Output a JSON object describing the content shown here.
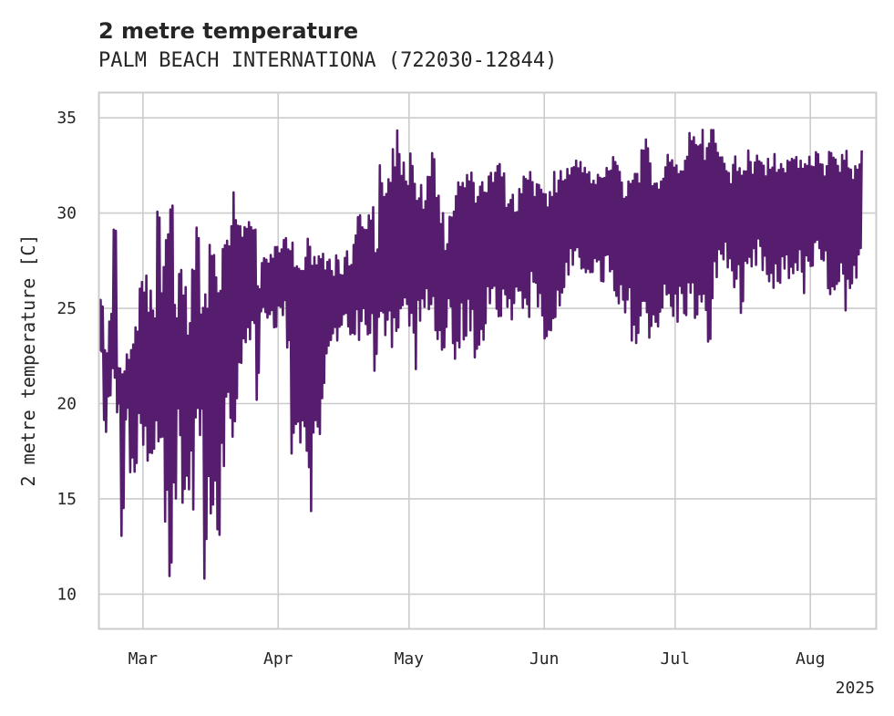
{
  "chart_data": {
    "type": "line",
    "title": "2 metre temperature",
    "subtitle": "PALM BEACH INTERNATIONA (722030-12844)",
    "xlabel": "",
    "ylabel": "2 metre temperature [C]",
    "x_range": [
      "2025-02-19",
      "2025-08-16"
    ],
    "ylim": [
      8.2,
      36.3
    ],
    "y_ticks": [
      10,
      15,
      20,
      25,
      30,
      35
    ],
    "x_ticks": [
      {
        "date": "2025-03-01",
        "label": "Mar"
      },
      {
        "date": "2025-04-01",
        "label": "Apr"
      },
      {
        "date": "2025-05-01",
        "label": "May"
      },
      {
        "date": "2025-06-01",
        "label": "Jun"
      },
      {
        "date": "2025-07-01",
        "label": "Jul"
      },
      {
        "date": "2025-08-01",
        "label": "Aug"
      }
    ],
    "x_offset_label": "2025",
    "grid": true,
    "line_color": "#561c6e",
    "series": [
      {
        "name": "",
        "x": [
          "2025-02-19",
          "2025-02-20",
          "2025-02-21",
          "2025-02-22",
          "2025-02-23",
          "2025-02-24",
          "2025-02-25",
          "2025-02-26",
          "2025-02-27",
          "2025-02-28",
          "2025-03-01",
          "2025-03-02",
          "2025-03-03",
          "2025-03-04",
          "2025-03-05",
          "2025-03-06",
          "2025-03-07",
          "2025-03-08",
          "2025-03-09",
          "2025-03-10",
          "2025-03-11",
          "2025-03-12",
          "2025-03-13",
          "2025-03-14",
          "2025-03-15",
          "2025-03-16",
          "2025-03-17",
          "2025-03-18",
          "2025-03-19",
          "2025-03-20",
          "2025-03-21",
          "2025-03-22",
          "2025-03-23",
          "2025-03-24",
          "2025-03-25",
          "2025-03-26",
          "2025-03-27",
          "2025-03-28",
          "2025-03-29",
          "2025-03-30",
          "2025-03-31",
          "2025-04-01",
          "2025-04-02",
          "2025-04-03",
          "2025-04-04",
          "2025-04-05",
          "2025-04-06",
          "2025-04-07",
          "2025-04-08",
          "2025-04-09",
          "2025-04-10",
          "2025-04-11",
          "2025-04-12",
          "2025-04-13",
          "2025-04-14",
          "2025-04-15",
          "2025-04-16",
          "2025-04-17",
          "2025-04-18",
          "2025-04-19",
          "2025-04-20",
          "2025-04-21",
          "2025-04-22",
          "2025-04-23",
          "2025-04-24",
          "2025-04-25",
          "2025-04-26",
          "2025-04-27",
          "2025-04-28",
          "2025-04-29",
          "2025-04-30",
          "2025-05-01",
          "2025-05-02",
          "2025-05-03",
          "2025-05-04",
          "2025-05-05",
          "2025-05-06",
          "2025-05-07",
          "2025-05-08",
          "2025-05-09",
          "2025-05-10",
          "2025-05-11",
          "2025-05-12",
          "2025-05-13",
          "2025-05-14",
          "2025-05-15",
          "2025-05-16",
          "2025-05-17",
          "2025-05-18",
          "2025-05-19",
          "2025-05-20",
          "2025-05-21",
          "2025-05-22",
          "2025-05-23",
          "2025-05-24",
          "2025-05-25",
          "2025-05-26",
          "2025-05-27",
          "2025-05-28",
          "2025-05-29",
          "2025-05-30",
          "2025-05-31",
          "2025-06-01",
          "2025-06-02",
          "2025-06-03",
          "2025-06-04",
          "2025-06-05",
          "2025-06-06",
          "2025-06-07",
          "2025-06-08",
          "2025-06-09",
          "2025-06-10",
          "2025-06-11",
          "2025-06-12",
          "2025-06-13",
          "2025-06-14",
          "2025-06-15",
          "2025-06-16",
          "2025-06-17",
          "2025-06-18",
          "2025-06-19",
          "2025-06-20",
          "2025-06-21",
          "2025-06-22",
          "2025-06-23",
          "2025-06-24",
          "2025-06-25",
          "2025-06-26",
          "2025-06-27",
          "2025-06-28",
          "2025-06-29",
          "2025-06-30",
          "2025-07-01",
          "2025-07-02",
          "2025-07-03",
          "2025-07-04",
          "2025-07-05",
          "2025-07-06",
          "2025-07-07",
          "2025-07-08",
          "2025-07-09",
          "2025-07-10",
          "2025-07-11",
          "2025-07-12",
          "2025-07-13",
          "2025-07-14",
          "2025-07-15",
          "2025-07-16",
          "2025-07-17",
          "2025-07-18",
          "2025-07-19",
          "2025-07-20",
          "2025-07-21",
          "2025-07-22",
          "2025-07-23",
          "2025-07-24",
          "2025-07-25",
          "2025-07-26",
          "2025-07-27",
          "2025-07-28",
          "2025-07-29",
          "2025-07-30",
          "2025-07-31",
          "2025-08-01",
          "2025-08-02",
          "2025-08-03",
          "2025-08-04",
          "2025-08-05",
          "2025-08-06",
          "2025-08-07",
          "2025-08-08",
          "2025-08-09",
          "2025-08-10",
          "2025-08-11",
          "2025-08-12",
          "2025-08-13",
          "2025-08-14",
          "2025-08-15",
          "2025-08-16"
        ],
        "min": [
          22.2,
          18.3,
          19.4,
          20.0,
          19.4,
          12.8,
          18.9,
          15.6,
          16.1,
          17.2,
          16.7,
          15.6,
          16.1,
          16.7,
          17.2,
          12.8,
          9.4,
          13.3,
          18.3,
          13.3,
          15.0,
          14.4,
          17.2,
          17.8,
          10.0,
          13.9,
          14.4,
          12.2,
          16.7,
          18.3,
          17.2,
          18.3,
          20.6,
          22.2,
          22.8,
          23.9,
          20.0,
          24.4,
          24.4,
          24.4,
          23.9,
          24.4,
          24.4,
          22.8,
          16.7,
          18.3,
          17.2,
          16.7,
          13.9,
          17.2,
          17.2,
          18.9,
          21.7,
          23.3,
          22.8,
          23.9,
          23.9,
          23.3,
          22.8,
          23.3,
          23.9,
          23.3,
          23.3,
          21.1,
          22.8,
          23.3,
          23.9,
          22.8,
          23.3,
          23.9,
          23.9,
          23.3,
          21.7,
          23.9,
          24.4,
          23.9,
          23.9,
          23.3,
          22.2,
          22.8,
          23.9,
          20.6,
          21.1,
          23.3,
          23.3,
          22.8,
          20.6,
          22.2,
          23.3,
          25.0,
          25.0,
          24.4,
          24.4,
          25.0,
          24.4,
          25.0,
          25.6,
          25.0,
          24.4,
          25.6,
          25.0,
          23.9,
          22.8,
          22.8,
          23.3,
          24.4,
          25.6,
          26.1,
          26.7,
          26.7,
          26.1,
          26.7,
          26.7,
          26.7,
          26.1,
          26.1,
          26.7,
          25.6,
          24.4,
          24.4,
          23.9,
          24.4,
          23.3,
          22.2,
          23.3,
          23.9,
          23.3,
          23.3,
          23.9,
          24.4,
          24.4,
          23.9,
          23.9,
          24.4,
          24.4,
          24.4,
          23.9,
          23.9,
          23.3,
          22.8,
          22.8,
          26.1,
          27.2,
          27.2,
          26.7,
          26.1,
          25.6,
          24.4,
          25.6,
          26.1,
          26.7,
          27.2,
          26.7,
          25.6,
          25.0,
          25.6,
          26.1,
          26.7,
          26.1,
          26.7,
          26.7,
          25.6,
          26.1,
          26.7,
          27.2,
          26.7,
          26.7,
          25.6,
          24.4,
          25.0,
          25.6,
          24.4,
          24.4,
          25.6,
          26.7,
          27.2,
          28.3
        ],
        "max": [
          25.6,
          23.3,
          25.0,
          29.4,
          22.2,
          22.2,
          22.8,
          23.3,
          24.4,
          26.7,
          27.2,
          26.1,
          25.0,
          30.6,
          27.2,
          28.9,
          31.1,
          26.1,
          27.8,
          26.7,
          25.0,
          28.3,
          30.0,
          25.6,
          27.2,
          30.0,
          28.3,
          27.8,
          28.9,
          30.0,
          31.1,
          30.6,
          30.0,
          29.4,
          30.0,
          29.4,
          26.7,
          27.8,
          27.8,
          27.8,
          28.3,
          28.3,
          28.9,
          28.9,
          28.9,
          28.3,
          27.8,
          28.9,
          28.3,
          28.3,
          28.3,
          28.3,
          27.8,
          27.2,
          27.8,
          27.2,
          28.3,
          27.8,
          28.9,
          30.6,
          30.0,
          30.0,
          30.6,
          28.9,
          32.8,
          31.1,
          32.2,
          33.9,
          34.4,
          32.8,
          32.2,
          33.3,
          32.2,
          31.7,
          31.1,
          32.8,
          33.9,
          31.1,
          30.0,
          28.9,
          30.6,
          31.1,
          32.2,
          32.2,
          32.2,
          32.2,
          32.2,
          31.7,
          32.2,
          32.2,
          32.2,
          32.8,
          32.2,
          31.1,
          31.1,
          30.6,
          31.7,
          32.2,
          32.2,
          31.7,
          31.7,
          32.2,
          31.1,
          31.7,
          32.2,
          32.8,
          32.2,
          32.8,
          32.8,
          33.3,
          32.8,
          32.8,
          32.2,
          31.7,
          32.2,
          32.2,
          32.8,
          33.3,
          32.8,
          32.2,
          31.7,
          31.7,
          32.2,
          32.8,
          33.3,
          33.9,
          32.8,
          32.8,
          32.2,
          32.8,
          33.3,
          32.8,
          32.8,
          33.3,
          33.9,
          34.4,
          35.0,
          35.0,
          34.4,
          33.9,
          35.0,
          33.9,
          33.3,
          32.8,
          32.2,
          33.3,
          33.3,
          32.8,
          33.3,
          32.8,
          33.3,
          33.3,
          32.8,
          33.3,
          33.3,
          32.8,
          33.3,
          32.8,
          33.3,
          33.3,
          32.8,
          33.3,
          33.3,
          32.8,
          33.3,
          33.3,
          32.8,
          33.3,
          33.3,
          32.8,
          33.3,
          33.3,
          32.8,
          33.3,
          33.3
        ]
      }
    ]
  }
}
